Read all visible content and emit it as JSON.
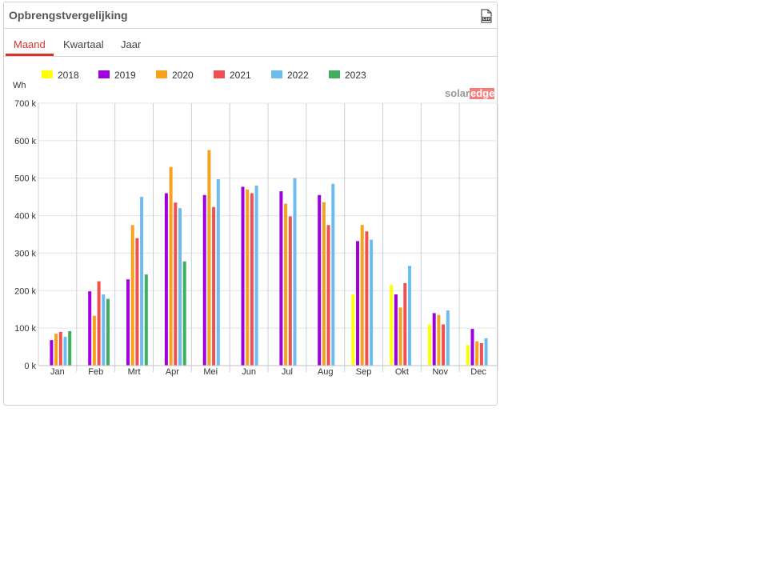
{
  "panel": {
    "title": "Opbrengstvergelijking",
    "csv_icon": "csv-file-icon",
    "tabs": [
      {
        "label": "Maand",
        "active": true
      },
      {
        "label": "Kwartaal",
        "active": false
      },
      {
        "label": "Jaar",
        "active": false
      }
    ],
    "accent_color": "#d9302b"
  },
  "brand": {
    "text_left": "solar",
    "text_right": "edge",
    "color_left": "#999999",
    "color_right": "#f08080"
  },
  "chart_data": {
    "type": "bar",
    "ylabel": "Wh",
    "ylim": [
      0,
      700000
    ],
    "yticks": [
      {
        "value": 0,
        "label": "0 k"
      },
      {
        "value": 100000,
        "label": "100 k"
      },
      {
        "value": 200000,
        "label": "200 k"
      },
      {
        "value": 300000,
        "label": "300 k"
      },
      {
        "value": 400000,
        "label": "400 k"
      },
      {
        "value": 500000,
        "label": "500 k"
      },
      {
        "value": 600000,
        "label": "600 k"
      },
      {
        "value": 700000,
        "label": "700 k"
      }
    ],
    "grid": true,
    "legend_position": "top",
    "categories": [
      "Jan",
      "Feb",
      "Mrt",
      "Apr",
      "Mei",
      "Jun",
      "Jul",
      "Aug",
      "Sep",
      "Okt",
      "Nov",
      "Dec"
    ],
    "series": [
      {
        "name": "2018",
        "color": "#ffff00",
        "values": [
          null,
          null,
          null,
          null,
          null,
          null,
          null,
          null,
          190000,
          215000,
          110000,
          55000
        ]
      },
      {
        "name": "2019",
        "color": "#a000e0",
        "values": [
          68000,
          198000,
          230000,
          460000,
          455000,
          477000,
          465000,
          455000,
          332000,
          190000,
          140000,
          98000
        ]
      },
      {
        "name": "2020",
        "color": "#f7a21b",
        "values": [
          85000,
          133000,
          375000,
          530000,
          575000,
          470000,
          432000,
          436000,
          375000,
          155000,
          135000,
          65000
        ]
      },
      {
        "name": "2021",
        "color": "#ef5050",
        "values": [
          90000,
          225000,
          340000,
          435000,
          423000,
          460000,
          398000,
          375000,
          358000,
          220000,
          110000,
          60000
        ]
      },
      {
        "name": "2022",
        "color": "#6dbcf0",
        "values": [
          77000,
          190000,
          450000,
          420000,
          497000,
          480000,
          500000,
          485000,
          336000,
          266000,
          147000,
          73000
        ]
      },
      {
        "name": "2023",
        "color": "#3faf5f",
        "values": [
          92000,
          178000,
          243000,
          278000,
          null,
          null,
          null,
          null,
          null,
          null,
          null,
          null
        ]
      }
    ]
  }
}
